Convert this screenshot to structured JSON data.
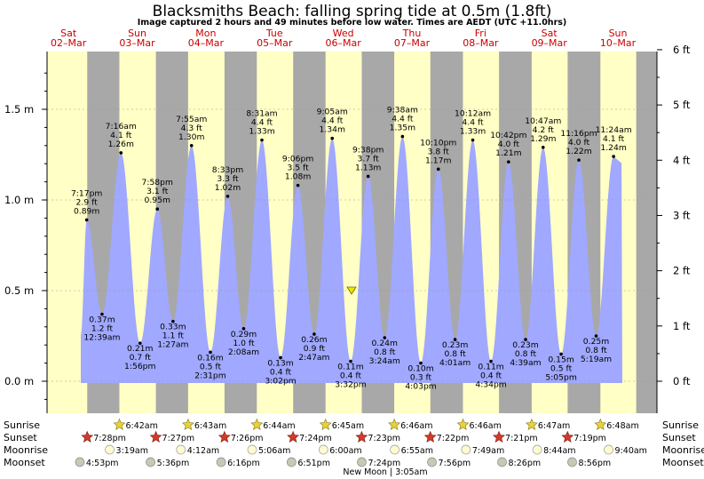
{
  "header": {
    "title": "Blacksmiths Beach: falling  spring tide at 0.5m (1.8ft)",
    "subtitle": "Image captured 2 hours and 49 minutes before low water. Times are AEDT (UTC +11.0hrs)"
  },
  "days": [
    {
      "dow": "Sat",
      "date": "02–Mar"
    },
    {
      "dow": "Sun",
      "date": "03–Mar"
    },
    {
      "dow": "Mon",
      "date": "04–Mar"
    },
    {
      "dow": "Tue",
      "date": "05–Mar"
    },
    {
      "dow": "Wed",
      "date": "06–Mar"
    },
    {
      "dow": "Thu",
      "date": "07–Mar"
    },
    {
      "dow": "Fri",
      "date": "08–Mar"
    },
    {
      "dow": "Sat",
      "date": "09–Mar"
    },
    {
      "dow": "Sun",
      "date": "10–Mar"
    }
  ],
  "rows": {
    "sunrise": "Sunrise",
    "sunset": "Sunset",
    "moonrise": "Moonrise",
    "moonset": "Moonset"
  },
  "moon_note": "New Moon | 3:05am",
  "colors": {
    "day": "#ffffc6",
    "night": "#a8a8a8",
    "water": "#a0a8ff",
    "day_text": "#cc0000"
  },
  "chart_data": {
    "type": "area",
    "x_unit": "days from Sat 02-Mar 00:00 (AEDT)",
    "y_left_unit": "m",
    "y_right_unit": "ft",
    "ylim": [
      -0.15,
      1.85
    ],
    "y_left_ticks": [
      {
        "value": 0.0,
        "label": "0.0 m"
      },
      {
        "value": 0.5,
        "label": "0.5 m"
      },
      {
        "value": 1.0,
        "label": "1.0 m"
      },
      {
        "value": 1.5,
        "label": "1.5 m"
      }
    ],
    "y_right_ticks": [
      {
        "value": 0,
        "label": "0 ft"
      },
      {
        "value": 1,
        "label": "1 ft"
      },
      {
        "value": 2,
        "label": "2 ft"
      },
      {
        "value": 3,
        "label": "3 ft"
      },
      {
        "value": 4,
        "label": "4 ft"
      },
      {
        "value": 5,
        "label": "5 ft"
      },
      {
        "value": 6,
        "label": "6 ft"
      }
    ],
    "tides": [
      {
        "type": "high",
        "time": "7:17 pm",
        "ft": "2.9 ft",
        "m": 0.89,
        "m_label": "0.89 m",
        "label_side": "above"
      },
      {
        "type": "low",
        "time": "12:39 am",
        "ft": "1.2 ft",
        "m": 0.37,
        "m_label": "0.37 m",
        "label_side": "below"
      },
      {
        "type": "high",
        "time": "7:16 am",
        "ft": "4.1 ft",
        "m": 1.26,
        "m_label": "1.26 m",
        "label_side": "above"
      },
      {
        "type": "low",
        "time": "1:56 pm",
        "ft": "0.7 ft",
        "m": 0.21,
        "m_label": "0.21 m",
        "label_side": "below"
      },
      {
        "type": "high",
        "time": "7:58 pm",
        "ft": "3.1 ft",
        "m": 0.95,
        "m_label": "0.95 m",
        "label_side": "above"
      },
      {
        "type": "low",
        "time": "1:27 am",
        "ft": "1.1 ft",
        "m": 0.33,
        "m_label": "0.33 m",
        "label_side": "below"
      },
      {
        "type": "high",
        "time": "7:55 am",
        "ft": "4.3 ft",
        "m": 1.3,
        "m_label": "1.30 m",
        "label_side": "above"
      },
      {
        "type": "low",
        "time": "2:31 pm",
        "ft": "0.5 ft",
        "m": 0.16,
        "m_label": "0.16 m",
        "label_side": "below"
      },
      {
        "type": "high",
        "time": "8:33 pm",
        "ft": "3.3 ft",
        "m": 1.02,
        "m_label": "1.02 m",
        "label_side": "above"
      },
      {
        "type": "low",
        "time": "2:08 am",
        "ft": "1.0 ft",
        "m": 0.29,
        "m_label": "0.29 m",
        "label_side": "below"
      },
      {
        "type": "high",
        "time": "8:31 am",
        "ft": "4.4 ft",
        "m": 1.33,
        "m_label": "1.33 m",
        "label_side": "above"
      },
      {
        "type": "low",
        "time": "3:02 pm",
        "ft": "0.4 ft",
        "m": 0.13,
        "m_label": "0.13 m",
        "label_side": "below"
      },
      {
        "type": "high",
        "time": "9:06 pm",
        "ft": "3.5 ft",
        "m": 1.08,
        "m_label": "1.08 m",
        "label_side": "above"
      },
      {
        "type": "low",
        "time": "2:47 am",
        "ft": "0.9 ft",
        "m": 0.26,
        "m_label": "0.26 m",
        "label_side": "below"
      },
      {
        "type": "high",
        "time": "9:05 am",
        "ft": "4.4 ft",
        "m": 1.34,
        "m_label": "1.34 m",
        "label_side": "above"
      },
      {
        "type": "low",
        "time": "3:32 pm",
        "ft": "0.4 ft",
        "m": 0.11,
        "m_label": "0.11 m",
        "label_side": "below"
      },
      {
        "type": "high",
        "time": "9:38 pm",
        "ft": "3.7 ft",
        "m": 1.13,
        "m_label": "1.13 m",
        "label_side": "above"
      },
      {
        "type": "low",
        "time": "3:24 am",
        "ft": "0.8 ft",
        "m": 0.24,
        "m_label": "0.24 m",
        "label_side": "below"
      },
      {
        "type": "high",
        "time": "9:38 am",
        "ft": "4.4 ft",
        "m": 1.35,
        "m_label": "1.35 m",
        "label_side": "above"
      },
      {
        "type": "low",
        "time": "4:03 pm",
        "ft": "0.3 ft",
        "m": 0.1,
        "m_label": "0.10 m",
        "label_side": "below"
      },
      {
        "type": "high",
        "time": "10:10 pm",
        "ft": "3.8 ft",
        "m": 1.17,
        "m_label": "1.17 m",
        "label_side": "above"
      },
      {
        "type": "low",
        "time": "4:01 am",
        "ft": "0.8 ft",
        "m": 0.23,
        "m_label": "0.23 m",
        "label_side": "below"
      },
      {
        "type": "high",
        "time": "10:12 am",
        "ft": "4.4 ft",
        "m": 1.33,
        "m_label": "1.33 m",
        "label_side": "above"
      },
      {
        "type": "low",
        "time": "4:34 pm",
        "ft": "0.4 ft",
        "m": 0.11,
        "m_label": "0.11 m",
        "label_side": "below"
      },
      {
        "type": "high",
        "time": "10:42 pm",
        "ft": "4.0 ft",
        "m": 1.21,
        "m_label": "1.21 m",
        "label_side": "above"
      },
      {
        "type": "low",
        "time": "4:39 am",
        "ft": "0.8 ft",
        "m": 0.23,
        "m_label": "0.23 m",
        "label_side": "below"
      },
      {
        "type": "high",
        "time": "10:47 am",
        "ft": "4.2 ft",
        "m": 1.29,
        "m_label": "1.29 m",
        "label_side": "above"
      },
      {
        "type": "low",
        "time": "5:05 pm",
        "ft": "0.5 ft",
        "m": 0.15,
        "m_label": "0.15 m",
        "label_side": "below"
      },
      {
        "type": "high",
        "time": "11:16 pm",
        "ft": "4.0 ft",
        "m": 1.22,
        "m_label": "1.22 m",
        "label_side": "above"
      },
      {
        "type": "low",
        "time": "5:19 am",
        "ft": "0.8 ft",
        "m": 0.25,
        "m_label": "0.25 m",
        "label_side": "below"
      },
      {
        "type": "high",
        "time": "11:24 am",
        "ft": "4.1 ft",
        "m": 1.24,
        "m_label": "1.24 m",
        "label_side": "above"
      }
    ],
    "current_level_m": 0.5,
    "sunrise": [
      "6:42am",
      "6:43am",
      "6:44am",
      "6:45am",
      "6:46am",
      "6:46am",
      "6:47am",
      "6:48am"
    ],
    "sunset": [
      "7:28pm",
      "7:27pm",
      "7:26pm",
      "7:24pm",
      "7:23pm",
      "7:22pm",
      "7:21pm",
      "7:19pm"
    ],
    "moonrise": [
      "3:19am",
      "4:12am",
      "5:06am",
      "6:00am",
      "6:55am",
      "7:49am",
      "8:44am",
      "9:40am"
    ],
    "moonset": [
      "4:53pm",
      "5:36pm",
      "6:16pm",
      "6:51pm",
      "7:24pm",
      "7:56pm",
      "8:26pm",
      "8:56pm"
    ]
  }
}
